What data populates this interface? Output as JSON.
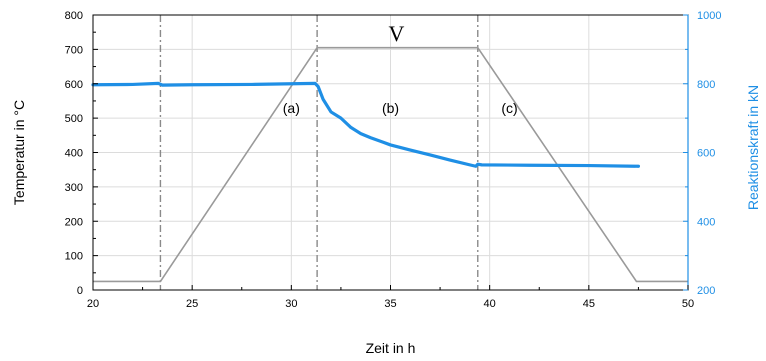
{
  "chart_data": {
    "type": "line",
    "xlabel": "Zeit in h",
    "ylabel": "Temperatur in °C",
    "y2label": "Reaktionskraft in kN",
    "xlim": [
      20,
      50
    ],
    "ylim": [
      0,
      800
    ],
    "y2lim": [
      200,
      1000
    ],
    "xticks": [
      20,
      25,
      30,
      35,
      40,
      45,
      50
    ],
    "yticks": [
      0,
      100,
      200,
      300,
      400,
      500,
      600,
      700,
      800
    ],
    "y2ticks": [
      200,
      400,
      600,
      800,
      1000
    ],
    "grid": true,
    "colors": {
      "temperature": "#9a9a9a",
      "force": "#1f8fe5",
      "phase_lines": "#8a8a8a"
    },
    "series": [
      {
        "axis": "left",
        "x": [
          20,
          23.4,
          31.3,
          39.4,
          47.4,
          50
        ],
        "values": [
          25,
          25,
          705,
          705,
          25,
          25
        ]
      },
      {
        "axis": "right",
        "x": [
          20,
          22,
          23.3,
          23.5,
          25,
          28,
          31.2,
          31.35,
          31.6,
          32,
          32.5,
          33,
          33.5,
          34,
          35,
          36,
          37,
          38,
          39,
          39.3,
          39.4,
          39.6,
          42,
          45,
          47.5
        ],
        "values": [
          797,
          798,
          801,
          796,
          797,
          798,
          801,
          792,
          755,
          718,
          700,
          673,
          655,
          643,
          622,
          607,
          593,
          578,
          564,
          560,
          566,
          564,
          563,
          562,
          560
        ]
      }
    ],
    "vlines": [
      23.4,
      31.3,
      39.4
    ],
    "annotations": [
      {
        "text": "(a)",
        "x": 30,
        "y": 515
      },
      {
        "text": "(b)",
        "x": 35,
        "y": 515
      },
      {
        "text": "(c)",
        "x": 41,
        "y": 515
      },
      {
        "text": "V",
        "x": 35.3,
        "y": 725
      }
    ]
  }
}
